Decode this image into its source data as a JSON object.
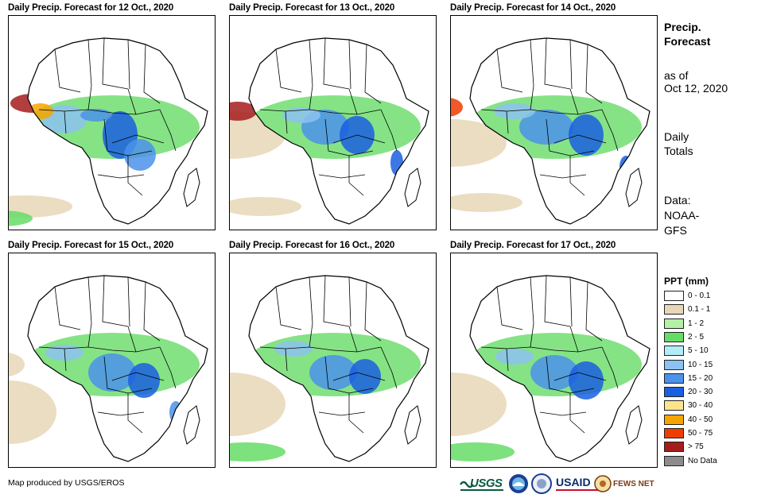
{
  "panels": [
    {
      "title": "Daily Precip. Forecast for 12 Oct., 2020"
    },
    {
      "title": "Daily Precip. Forecast for 13 Oct., 2020"
    },
    {
      "title": "Daily Precip. Forecast for 14 Oct., 2020"
    },
    {
      "title": "Daily Precip. Forecast for 15 Oct., 2020"
    },
    {
      "title": "Daily Precip. Forecast for 16 Oct., 2020"
    },
    {
      "title": "Daily Precip. Forecast for 17 Oct., 2020"
    }
  ],
  "sidebar": {
    "heading_line1": "Precip.",
    "heading_line2": "Forecast",
    "asof_line1": "as of",
    "asof_line2": "Oct 12, 2020",
    "totals_line1": "Daily",
    "totals_line2": "Totals",
    "data_line1": "Data:",
    "data_line2": "NOAA-",
    "data_line3": "GFS"
  },
  "legend": {
    "title": "PPT (mm)",
    "items": [
      {
        "label": "0 - 0.1",
        "color": "#ffffff"
      },
      {
        "label": "0.1 - 1",
        "color": "#e8d7b6"
      },
      {
        "label": "1 - 2",
        "color": "#b4f0a6"
      },
      {
        "label": "2 - 5",
        "color": "#66dc66"
      },
      {
        "label": "5 - 10",
        "color": "#b2ecf6"
      },
      {
        "label": "10 - 15",
        "color": "#8cc2f0"
      },
      {
        "label": "15 - 20",
        "color": "#4b92ea"
      },
      {
        "label": "20 - 30",
        "color": "#1a5fe0"
      },
      {
        "label": "30 - 40",
        "color": "#fbe48a"
      },
      {
        "label": "40 - 50",
        "color": "#f6a400"
      },
      {
        "label": "50 - 75",
        "color": "#f03c00"
      },
      {
        "label": "> 75",
        "color": "#a41c1c"
      },
      {
        "label": "No Data",
        "color": "#8c8c8c"
      }
    ]
  },
  "credit": "Map produced by USGS/EROS",
  "logos": {
    "usgs": "USGS",
    "usaid": "USAID",
    "fews": "FEWS NET"
  },
  "colors": {
    "border": "#000000",
    "background": "#ffffff"
  }
}
